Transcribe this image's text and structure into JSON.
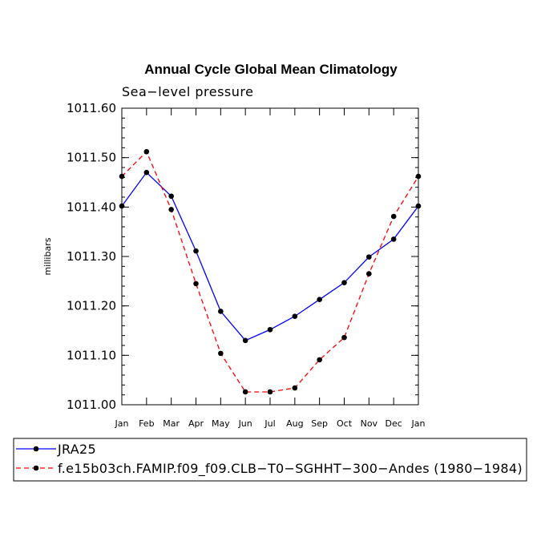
{
  "chart_data": {
    "type": "line",
    "title": "Annual Cycle Global Mean Climatology",
    "subtitle": "Sea−level pressure",
    "ylabel": "millibars",
    "xlabel": "",
    "categories": [
      "Jan",
      "Feb",
      "Mar",
      "Apr",
      "May",
      "Jun",
      "Jul",
      "Aug",
      "Sep",
      "Oct",
      "Nov",
      "Dec",
      "Jan"
    ],
    "ylim": [
      1011.0,
      1011.6
    ],
    "yticks": [
      1011.0,
      1011.1,
      1011.2,
      1011.3,
      1011.4,
      1011.5,
      1011.6
    ],
    "ytick_labels": [
      "1011.00",
      "1011.10",
      "1011.20",
      "1011.30",
      "1011.40",
      "1011.50",
      "1011.60"
    ],
    "series": [
      {
        "name": "JRA25",
        "color": "#0000ff",
        "dash": "solid",
        "values": [
          1011.402,
          1011.47,
          1011.422,
          1011.311,
          1011.189,
          1011.13,
          1011.152,
          1011.179,
          1011.213,
          1011.247,
          1011.299,
          1011.335,
          1011.402
        ]
      },
      {
        "name": "f.e15b03ch.FAMIP.f09_f09.CLB−T0−SGHHT−300−Andes (1980−1984)",
        "color": "#ff0000",
        "dash": "dashed",
        "values": [
          1011.462,
          1011.512,
          1011.395,
          1011.245,
          1011.104,
          1011.026,
          1011.026,
          1011.034,
          1011.091,
          1011.136,
          1011.265,
          1011.381,
          1011.462
        ]
      }
    ],
    "legend_position": "bottom",
    "grid": false
  }
}
